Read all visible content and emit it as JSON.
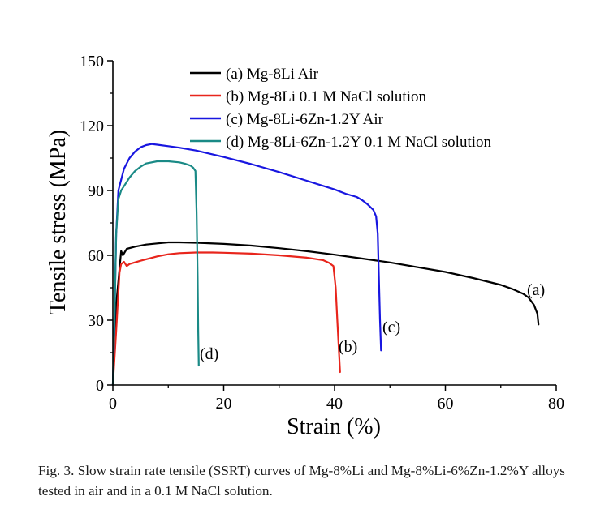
{
  "chart_data": {
    "type": "line",
    "xlabel": "Strain (%)",
    "ylabel": "Tensile stress (MPa)",
    "xlim": [
      0,
      80
    ],
    "ylim": [
      0,
      150
    ],
    "xticks": [
      0,
      20,
      40,
      60,
      80
    ],
    "yticks": [
      0,
      30,
      60,
      90,
      120,
      150
    ],
    "xtick_labels": [
      "0",
      "20",
      "40",
      "60",
      "80"
    ],
    "ytick_labels": [
      "0",
      "30",
      "60",
      "90",
      "120",
      "150"
    ],
    "grid": false,
    "legend_position": "top-right",
    "series": [
      {
        "name": "(a) Mg-8Li Air",
        "color": "#000000",
        "annotation": "(a)",
        "x": [
          0,
          0.7,
          1.5,
          1.8,
          2.5,
          4,
          6,
          8,
          10,
          12,
          15,
          20,
          25,
          30,
          35,
          40,
          45,
          50,
          55,
          60,
          65,
          70,
          72,
          74,
          75,
          76,
          76.6,
          76.8
        ],
        "y": [
          0,
          40,
          62,
          60,
          63,
          64,
          65,
          65.5,
          66,
          66,
          65.8,
          65.3,
          64.5,
          63.3,
          61.9,
          60.3,
          58.5,
          56.7,
          54.5,
          52.3,
          49.5,
          46.3,
          44.5,
          42.3,
          40.5,
          37,
          33,
          28
        ]
      },
      {
        "name": "(b) Mg-8Li 0.1 M NaCl solution",
        "color": "#e8251c",
        "annotation": "(b)",
        "x": [
          0,
          0.6,
          1.2,
          1.5,
          2,
          2.5,
          3,
          5,
          8,
          10,
          12,
          15,
          18,
          20,
          25,
          30,
          35,
          38,
          39,
          39.8,
          40.2,
          40.5,
          40.8,
          41
        ],
        "y": [
          0,
          25,
          52,
          56,
          57,
          55,
          56,
          57.5,
          59.5,
          60.5,
          61,
          61.3,
          61.3,
          61.2,
          60.8,
          60,
          58.9,
          57.7,
          56.5,
          55,
          45,
          30,
          15,
          6
        ]
      },
      {
        "name": "(c) Mg-8Li-6Zn-1.2Y Air",
        "color": "#1816e0",
        "annotation": "(c)",
        "x": [
          0,
          0.3,
          0.6,
          1,
          2,
          3,
          4,
          5,
          6,
          7,
          8,
          10,
          12,
          15,
          20,
          25,
          30,
          35,
          40,
          42,
          44,
          45,
          46,
          47,
          47.5,
          47.8,
          48,
          48.2,
          48.4
        ],
        "y": [
          0,
          30,
          70,
          90,
          100,
          105,
          108,
          110,
          111,
          111.5,
          111.2,
          110.5,
          109.8,
          108.5,
          105.5,
          102.2,
          98.5,
          94.5,
          90.5,
          88.5,
          87,
          85.5,
          83.5,
          81,
          78,
          70,
          50,
          30,
          16
        ]
      },
      {
        "name": "(d) Mg-8Li-6Zn-1.2Y 0.1 M NaCl solution",
        "color": "#1a8a86",
        "annotation": "(d)",
        "x": [
          0,
          0.3,
          0.6,
          1,
          1.5,
          2,
          3,
          4,
          5,
          6,
          8,
          10,
          12,
          13,
          14,
          14.5,
          14.9,
          15.1,
          15.3,
          15.4,
          15.5
        ],
        "y": [
          0,
          30,
          70,
          86,
          90,
          92,
          96,
          99,
          101,
          102.5,
          103.5,
          103.5,
          103,
          102.4,
          101.5,
          100.5,
          99,
          80,
          50,
          25,
          9
        ]
      }
    ]
  },
  "caption": "Fig. 3. Slow strain rate tensile (SSRT) curves of Mg-8%Li and Mg-8%Li-6%Zn-1.2%Y alloys tested in air and in a 0.1 M NaCl solution."
}
